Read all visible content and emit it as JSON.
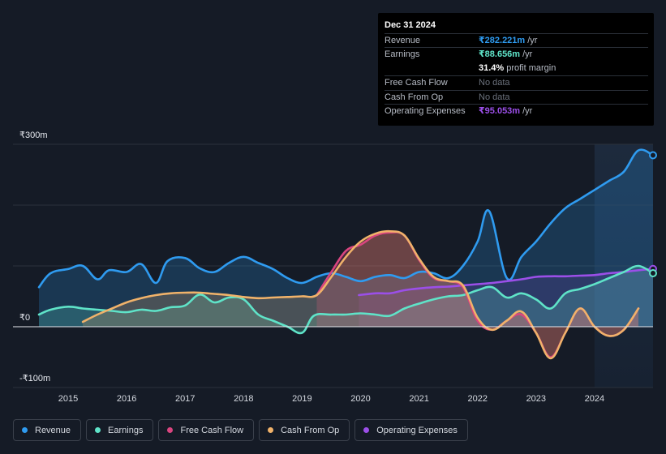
{
  "tooltip": {
    "date": "Dec 31 2024",
    "rows": [
      {
        "label": "Revenue",
        "value": "₹282.221m",
        "unit": "/yr",
        "color": "#2f9bf0"
      },
      {
        "label": "Earnings",
        "value": "₹88.656m",
        "unit": "/yr",
        "color": "#5fe3c8"
      },
      {
        "label": "",
        "value": "31.4%",
        "unit": "profit margin",
        "color": "#ffffff"
      },
      {
        "label": "Free Cash Flow",
        "value": "No data",
        "unit": "",
        "color": "#6b717c"
      },
      {
        "label": "Cash From Op",
        "value": "No data",
        "unit": "",
        "color": "#6b717c"
      },
      {
        "label": "Operating Expenses",
        "value": "₹95.053m",
        "unit": "/yr",
        "color": "#9b4fe8"
      }
    ]
  },
  "legend": [
    {
      "label": "Revenue",
      "color": "#2f9bf0"
    },
    {
      "label": "Earnings",
      "color": "#5fe3c8"
    },
    {
      "label": "Free Cash Flow",
      "color": "#d9457f"
    },
    {
      "label": "Cash From Op",
      "color": "#f0b26a"
    },
    {
      "label": "Operating Expenses",
      "color": "#9b4fe8"
    }
  ],
  "chart_data": {
    "type": "area",
    "ylabels": {
      "top": "₹300m",
      "zero": "₹0",
      "bottom": "-₹100m"
    },
    "ylim": [
      -100,
      300
    ],
    "xlim": [
      2014.5,
      2025.0
    ],
    "xticks": [
      "2015",
      "2016",
      "2017",
      "2018",
      "2019",
      "2020",
      "2021",
      "2022",
      "2023",
      "2024"
    ],
    "xtick_values": [
      2015,
      2016,
      2017,
      2018,
      2019,
      2020,
      2021,
      2022,
      2023,
      2024
    ],
    "highlight_start": 2024.0,
    "series": [
      {
        "name": "Revenue",
        "color": "#2f9bf0",
        "fill_opacity": 0.22,
        "x": [
          2014.5,
          2014.7,
          2015.0,
          2015.25,
          2015.5,
          2015.7,
          2016.0,
          2016.25,
          2016.5,
          2016.7,
          2017.0,
          2017.25,
          2017.5,
          2017.75,
          2018.0,
          2018.25,
          2018.5,
          2018.75,
          2019.0,
          2019.25,
          2019.5,
          2019.75,
          2020.0,
          2020.25,
          2020.5,
          2020.75,
          2021.0,
          2021.25,
          2021.5,
          2021.75,
          2022.0,
          2022.2,
          2022.5,
          2022.75,
          2023.0,
          2023.25,
          2023.5,
          2023.75,
          2024.0,
          2024.25,
          2024.5,
          2024.75,
          2025.0
        ],
        "values": [
          65,
          88,
          95,
          100,
          78,
          93,
          90,
          103,
          72,
          108,
          113,
          96,
          90,
          105,
          115,
          105,
          95,
          80,
          72,
          82,
          88,
          82,
          75,
          82,
          85,
          80,
          90,
          88,
          80,
          100,
          140,
          190,
          80,
          115,
          140,
          170,
          195,
          210,
          225,
          240,
          255,
          290,
          282
        ]
      },
      {
        "name": "Earnings",
        "color": "#5fe3c8",
        "fill_opacity": 0.22,
        "x": [
          2014.5,
          2014.7,
          2015.0,
          2015.25,
          2015.5,
          2015.75,
          2016.0,
          2016.25,
          2016.5,
          2016.75,
          2017.0,
          2017.25,
          2017.5,
          2017.75,
          2018.0,
          2018.25,
          2018.5,
          2018.75,
          2019.0,
          2019.2,
          2019.5,
          2019.75,
          2020.0,
          2020.25,
          2020.5,
          2020.75,
          2021.0,
          2021.25,
          2021.5,
          2021.75,
          2022.0,
          2022.25,
          2022.5,
          2022.75,
          2023.0,
          2023.25,
          2023.5,
          2023.75,
          2024.0,
          2024.25,
          2024.5,
          2024.75,
          2025.0
        ],
        "values": [
          20,
          28,
          33,
          30,
          28,
          26,
          24,
          28,
          26,
          32,
          35,
          53,
          40,
          48,
          45,
          20,
          10,
          0,
          -10,
          18,
          20,
          20,
          22,
          20,
          18,
          30,
          38,
          45,
          50,
          52,
          60,
          65,
          48,
          55,
          45,
          30,
          55,
          62,
          70,
          80,
          90,
          100,
          88
        ]
      },
      {
        "name": "Free Cash Flow",
        "color": "#d9457f",
        "fill_opacity": 0.25,
        "x": [
          2019.25,
          2019.5,
          2019.75,
          2020.0,
          2020.25,
          2020.5,
          2020.75,
          2021.0,
          2021.25,
          2021.5,
          2021.75,
          2022.0,
          2022.25,
          2022.5,
          2022.75,
          2023.0,
          2023.25,
          2023.5,
          2023.75,
          2024.0,
          2024.25,
          2024.5,
          2024.75
        ],
        "values": [
          52,
          90,
          125,
          135,
          150,
          155,
          150,
          110,
          80,
          75,
          65,
          10,
          -5,
          10,
          20,
          -10,
          -50,
          -10,
          30,
          0,
          -15,
          -5,
          30
        ]
      },
      {
        "name": "Cash From Op",
        "color": "#f0b26a",
        "fill_opacity": 0.22,
        "x": [
          2015.25,
          2015.5,
          2015.75,
          2016.0,
          2016.25,
          2016.5,
          2016.75,
          2017.0,
          2017.25,
          2017.5,
          2017.75,
          2018.0,
          2018.25,
          2018.5,
          2018.75,
          2019.0,
          2019.25,
          2019.5,
          2019.75,
          2020.0,
          2020.25,
          2020.5,
          2020.75,
          2021.0,
          2021.25,
          2021.5,
          2021.75,
          2022.0,
          2022.25,
          2022.5,
          2022.75,
          2023.0,
          2023.25,
          2023.5,
          2023.75,
          2024.0,
          2024.25,
          2024.5,
          2024.75
        ],
        "values": [
          8,
          20,
          30,
          40,
          47,
          52,
          55,
          56,
          56,
          54,
          52,
          49,
          47,
          48,
          49,
          50,
          52,
          82,
          115,
          140,
          153,
          157,
          150,
          112,
          82,
          75,
          68,
          15,
          -5,
          10,
          25,
          -10,
          -52,
          -10,
          30,
          0,
          -15,
          -5,
          30
        ]
      },
      {
        "name": "Operating Expenses",
        "color": "#9b4fe8",
        "fill_opacity": 0.15,
        "x": [
          2019.97,
          2020.25,
          2020.5,
          2020.75,
          2021.0,
          2021.25,
          2021.5,
          2021.75,
          2022.0,
          2022.25,
          2022.5,
          2022.75,
          2023.0,
          2023.25,
          2023.5,
          2023.75,
          2024.0,
          2024.25,
          2024.5,
          2024.75,
          2025.0
        ],
        "values": [
          52,
          55,
          55,
          60,
          63,
          65,
          66,
          68,
          70,
          72,
          75,
          78,
          82,
          83,
          83,
          84,
          85,
          88,
          90,
          93,
          95
        ]
      }
    ]
  }
}
